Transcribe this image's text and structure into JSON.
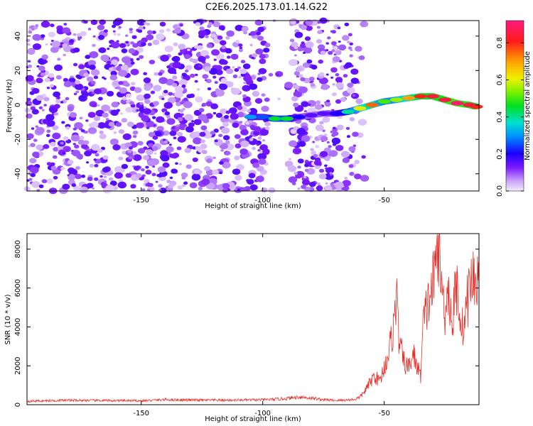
{
  "title": "C2E6.2025.173.01.14.G22",
  "colorbar": {
    "label": "Normalized spectral amplitude",
    "ticks": [
      "0.0",
      "0.2",
      "0.4",
      "0.6",
      "0.8"
    ],
    "tick_values": [
      0.0,
      0.2,
      0.4,
      0.6,
      0.8
    ],
    "range": [
      0,
      0.92
    ]
  },
  "chart_data": [
    {
      "type": "heatmap",
      "xlabel": "Height of straight line (km)",
      "ylabel": "Frequency (Hz)",
      "xlim": [
        -197,
        -11
      ],
      "ylim": [
        -50,
        49
      ],
      "x_ticks": [
        -150,
        -100,
        -50
      ],
      "y_ticks": [
        -40,
        -20,
        0,
        20,
        40
      ],
      "noise_band": {
        "x_range": [
          -197,
          -58
        ],
        "y_range": [
          -50,
          49
        ],
        "amplitude": "0.0-0.1"
      },
      "signal_track": [
        {
          "x": -105,
          "y": -7,
          "amp": 0.3
        },
        {
          "x": -100,
          "y": -7,
          "amp": 0.25
        },
        {
          "x": -95,
          "y": -8,
          "amp": 0.45
        },
        {
          "x": -90,
          "y": -8,
          "amp": 0.45
        },
        {
          "x": -85,
          "y": -7,
          "amp": 0.2
        },
        {
          "x": -80,
          "y": -6,
          "amp": 0.15
        },
        {
          "x": -75,
          "y": -5,
          "amp": 0.15
        },
        {
          "x": -70,
          "y": -5,
          "amp": 0.2
        },
        {
          "x": -65,
          "y": -4,
          "amp": 0.4
        },
        {
          "x": -60,
          "y": -2,
          "amp": 0.6
        },
        {
          "x": -55,
          "y": 0,
          "amp": 0.75
        },
        {
          "x": -50,
          "y": 2,
          "amp": 0.5
        },
        {
          "x": -45,
          "y": 3,
          "amp": 0.55
        },
        {
          "x": -40,
          "y": 4,
          "amp": 0.7
        },
        {
          "x": -35,
          "y": 5,
          "amp": 0.8
        },
        {
          "x": -30,
          "y": 5,
          "amp": 0.85
        },
        {
          "x": -25,
          "y": 3,
          "amp": 0.85
        },
        {
          "x": -20,
          "y": 1,
          "amp": 0.9
        },
        {
          "x": -15,
          "y": 0,
          "amp": 0.85
        },
        {
          "x": -12,
          "y": -1,
          "amp": 0.8
        }
      ]
    },
    {
      "type": "line",
      "xlabel": "Height of straight line (km)",
      "ylabel": "SNR (10 * v/v)",
      "xlim": [
        -197,
        -11
      ],
      "ylim": [
        0,
        8800
      ],
      "x_ticks": [
        -150,
        -100,
        -50
      ],
      "y_ticks": [
        0,
        2000,
        4000,
        6000,
        8000
      ],
      "color": "#e8302a",
      "series": [
        {
          "x": [
            -197,
            -190,
            -180,
            -170,
            -160,
            -150,
            -140,
            -130,
            -120,
            -110,
            -100,
            -95,
            -90,
            -85,
            -80,
            -75,
            -70,
            -65,
            -62,
            -60,
            -58,
            -56,
            -54,
            -52,
            -50,
            -48,
            -46,
            -45,
            -44,
            -42,
            -40,
            -38,
            -36,
            -35,
            -34,
            -32,
            -30,
            -29,
            -28,
            -27,
            -26,
            -25,
            -24,
            -23,
            -22,
            -21,
            -20,
            -19,
            -18,
            -17,
            -16,
            -15,
            -14,
            -13,
            -12,
            -11
          ],
          "values": [
            180,
            200,
            230,
            220,
            210,
            200,
            260,
            240,
            230,
            240,
            250,
            280,
            320,
            400,
            340,
            260,
            220,
            240,
            280,
            380,
            700,
            1100,
            1500,
            1200,
            1900,
            2800,
            4100,
            5800,
            3400,
            2200,
            1900,
            2600,
            1800,
            1500,
            4100,
            5200,
            6200,
            6800,
            8700,
            7200,
            5600,
            4800,
            6300,
            5200,
            4000,
            5500,
            6100,
            4900,
            3900,
            4300,
            5200,
            5900,
            6600,
            6300,
            6900,
            5800
          ]
        }
      ]
    }
  ]
}
